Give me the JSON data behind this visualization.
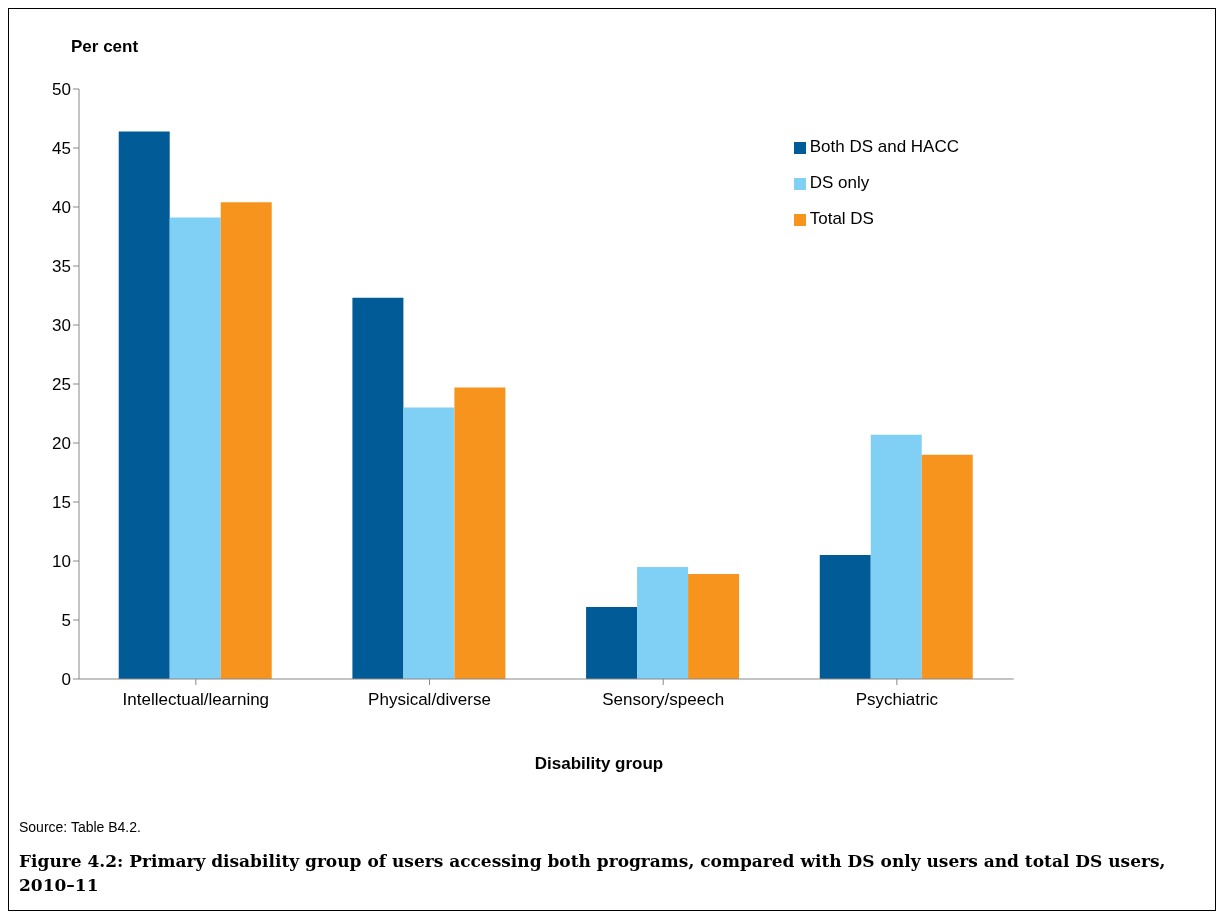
{
  "chart_data": {
    "type": "bar",
    "title": "Figure 4.2: Primary disability group of users accessing both programs, compared with DS only users and total DS users, 2010–11",
    "ylabel": "Per cent",
    "xlabel": "Disability group",
    "annotations": [
      "Source: Table B4.2."
    ],
    "categories": [
      "Intellectual/learning",
      "Physical/diverse",
      "Sensory/speech",
      "Psychiatric"
    ],
    "series": [
      {
        "name": "Both DS and HACC",
        "color": "#005b96",
        "values": [
          46.4,
          32.3,
          6.1,
          10.5
        ]
      },
      {
        "name": "DS only",
        "color": "#80cff4",
        "values": [
          39.1,
          23.0,
          9.5,
          20.7
        ]
      },
      {
        "name": "Total DS",
        "color": "#f7941d",
        "values": [
          40.4,
          24.7,
          8.9,
          19.0
        ]
      }
    ],
    "ylim": [
      0,
      50
    ],
    "yticks": [
      0,
      5,
      10,
      15,
      20,
      25,
      30,
      35,
      40,
      45,
      50
    ],
    "grid": false,
    "legend": "top right"
  }
}
